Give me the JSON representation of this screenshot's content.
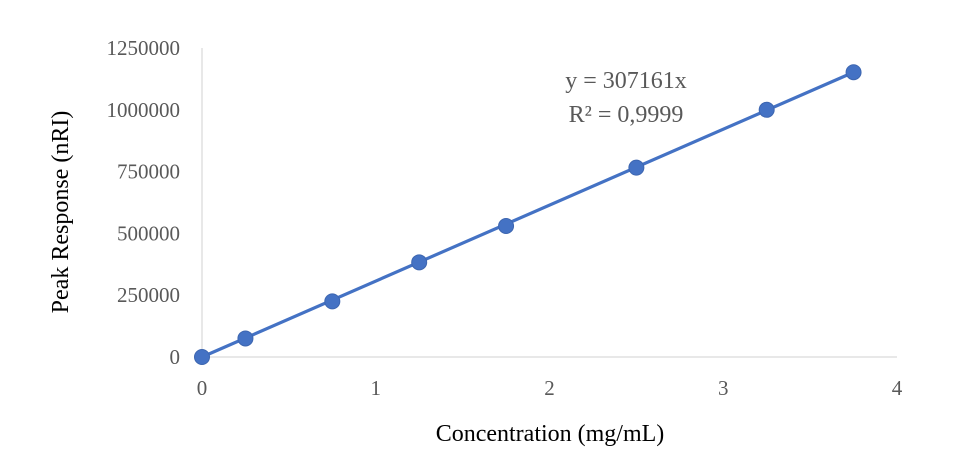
{
  "chart_data": {
    "type": "scatter",
    "title": "",
    "xlabel": "Concentration (mg/mL)",
    "ylabel": "Peak Response (nRI)",
    "xlim": [
      0,
      4
    ],
    "ylim": [
      0,
      1250000
    ],
    "x_ticks": [
      "0",
      "1",
      "2",
      "3",
      "4"
    ],
    "y_ticks": [
      "0",
      "250000",
      "500000",
      "750000",
      "1000000",
      "1250000"
    ],
    "grid": false,
    "legend": "none",
    "series": [
      {
        "x": [
          0,
          0.25,
          0.75,
          1.25,
          1.75,
          2.5,
          3.25,
          3.75
        ],
        "y": [
          0,
          75000,
          225000,
          383000,
          530000,
          766000,
          1000000,
          1152000
        ],
        "color": "#4472C4"
      }
    ],
    "trendline": {
      "type": "linear-through-origin",
      "slope": 307161,
      "x_range": [
        0,
        3.75
      ],
      "color": "#4472C4"
    },
    "annotations": [
      "y = 307161x",
      "R² = 0,9999"
    ]
  }
}
